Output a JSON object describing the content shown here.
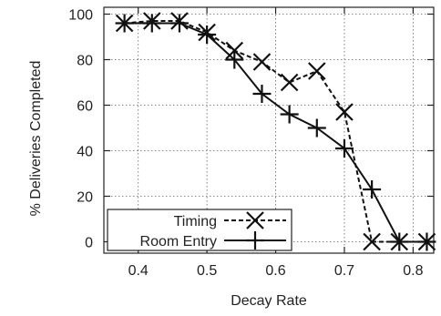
{
  "chart_data": {
    "type": "line",
    "title": "",
    "xlabel": "Decay Rate",
    "ylabel": "% Deliveries Completed",
    "xlim": [
      0.35,
      0.83
    ],
    "ylim": [
      -5,
      103
    ],
    "xticks": [
      "0.4",
      "0.5",
      "0.6",
      "0.7",
      "0.8"
    ],
    "yticks": [
      "0",
      "20",
      "40",
      "60",
      "80",
      "100"
    ],
    "grid": true,
    "legend_position": "bottom-left",
    "series": [
      {
        "name": "Timing",
        "marker": "x",
        "line_style": "dashed",
        "color": "#111111",
        "x": [
          0.38,
          0.42,
          0.46,
          0.5,
          0.54,
          0.58,
          0.62,
          0.66,
          0.7,
          0.74,
          0.78,
          0.82
        ],
        "y": [
          96,
          97,
          97,
          92,
          84,
          79,
          70,
          75,
          57,
          0,
          0,
          0
        ]
      },
      {
        "name": "Room Entry",
        "marker": "+",
        "line_style": "solid",
        "color": "#111111",
        "x": [
          0.38,
          0.42,
          0.46,
          0.5,
          0.54,
          0.58,
          0.62,
          0.66,
          0.7,
          0.74,
          0.78,
          0.82
        ],
        "y": [
          96,
          96,
          96,
          91,
          80,
          65,
          56,
          50,
          41,
          23,
          0,
          0
        ]
      }
    ]
  }
}
